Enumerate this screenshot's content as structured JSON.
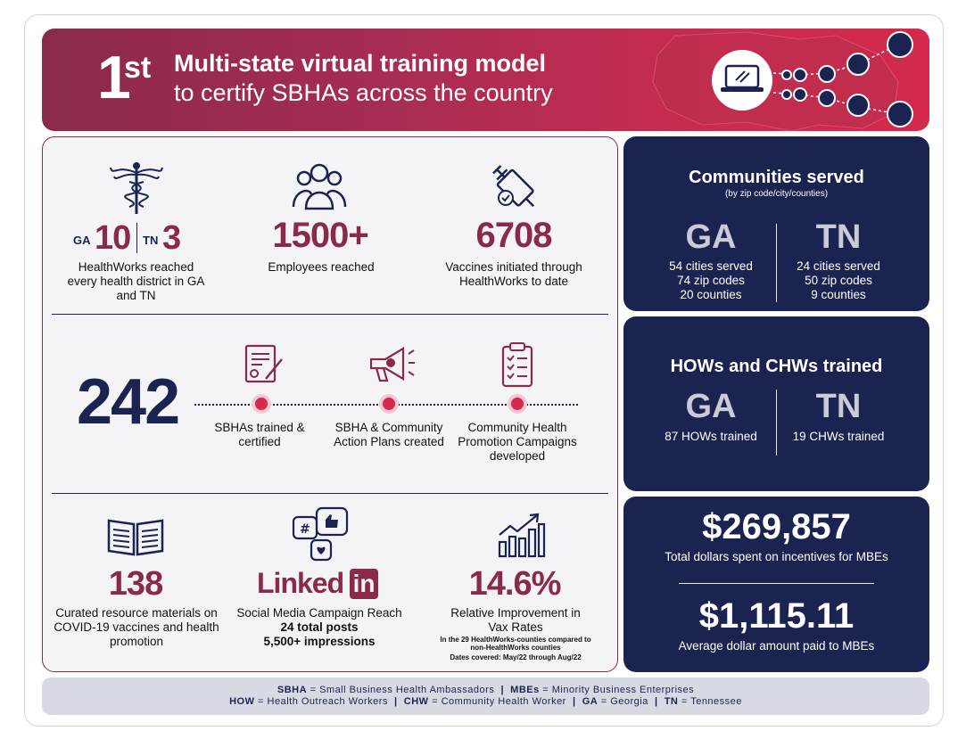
{
  "banner": {
    "rank_number": "1",
    "rank_suffix": "st",
    "title_line1": "Multi-state virtual training model",
    "title_line2": "to certify SBHAs across the country"
  },
  "top_stats": [
    {
      "icon": "caduceus-icon",
      "ga_label": "GA",
      "ga_value": "10",
      "tn_label": "TN",
      "tn_value": "3",
      "caption": "HealthWorks reached every health district in GA and TN"
    },
    {
      "icon": "people-group-icon",
      "value": "1500+",
      "caption": "Employees reached"
    },
    {
      "icon": "syringe-icon",
      "value": "6708",
      "caption": "Vaccines initiated through HealthWorks to date"
    }
  ],
  "middle": {
    "big_number": "242",
    "steps": [
      {
        "icon": "certificate-icon",
        "caption": "SBHAs trained & certified"
      },
      {
        "icon": "megaphone-icon",
        "caption": "SBHA & Community Action Plans created"
      },
      {
        "icon": "clipboard-checklist-icon",
        "caption": "Community Health Promotion Campaigns developed"
      }
    ]
  },
  "bottom_stats": [
    {
      "icon": "book-icon",
      "value": "138",
      "caption": "Curated resource materials on COVID-19 vaccines and health promotion"
    },
    {
      "icon": "social-media-icon",
      "brand": "Linked",
      "brand_box": "in",
      "caption": "Social Media Campaign Reach",
      "line2": "24 total posts",
      "line3": "5,500+ impressions"
    },
    {
      "icon": "bar-chart-growth-icon",
      "value": "14.6%",
      "caption": "Relative Improvement in Vax Rates",
      "note": "In the 29 HealthWorks-counties compared to non-HealthWorks counties",
      "dates": "Dates covered: May/22 through Aug/22"
    }
  ],
  "communities": {
    "title": "Communities served",
    "subtitle": "(by zip code/city/counties)",
    "ga": {
      "label": "GA",
      "lines": [
        "54 cities served",
        "74 zip codes",
        "20 counties"
      ]
    },
    "tn": {
      "label": "TN",
      "lines": [
        "24 cities served",
        "50 zip codes",
        "9 counties"
      ]
    }
  },
  "trained": {
    "title": "HOWs and CHWs trained",
    "ga": {
      "label": "GA",
      "line": "87 HOWs trained"
    },
    "tn": {
      "label": "TN",
      "line": "19 CHWs trained"
    }
  },
  "dollars": {
    "total": "$269,857",
    "total_caption": "Total dollars spent on incentives for MBEs",
    "average": "$1,115.11",
    "average_caption": "Average dollar amount paid to MBEs"
  },
  "footer": {
    "row1": [
      {
        "abbr": "SBHA",
        "def": " = Small Business Health Ambassadors"
      },
      {
        "abbr": "MBEs",
        "def": " = Minority Business Enterprises"
      }
    ],
    "row2": [
      {
        "abbr": "HOW",
        "def": " = Health Outreach Workers"
      },
      {
        "abbr": "CHW",
        "def": " = Community Health Worker"
      },
      {
        "abbr": "GA",
        "def": " = Georgia"
      },
      {
        "abbr": "TN",
        "def": " = Tennessee"
      }
    ],
    "separator": "|"
  },
  "colors": {
    "navy": "#1b2450",
    "maroon": "#8a2a4a",
    "red": "#d42a4c",
    "panel_bg": "#f4f4f6"
  }
}
